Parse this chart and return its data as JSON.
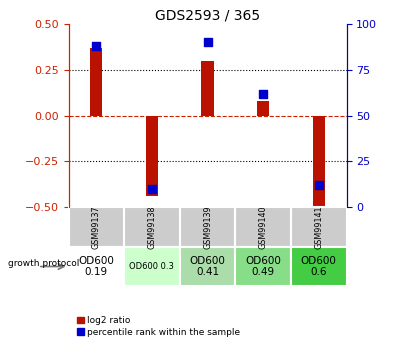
{
  "title": "GDS2593 / 365",
  "samples": [
    "GSM99137",
    "GSM99138",
    "GSM99139",
    "GSM99140",
    "GSM99141"
  ],
  "log2_ratio": [
    0.37,
    -0.44,
    0.3,
    0.08,
    -0.5
  ],
  "percentile_rank": [
    88,
    10,
    90,
    62,
    12
  ],
  "ylim_left": [
    -0.5,
    0.5
  ],
  "ylim_right": [
    0,
    100
  ],
  "yticks_left": [
    -0.5,
    -0.25,
    0.0,
    0.25,
    0.5
  ],
  "yticks_right": [
    0,
    25,
    50,
    75,
    100
  ],
  "bar_color_red": "#bb1100",
  "bar_color_blue": "#0000cc",
  "protocol_labels": [
    "OD600\n0.19",
    "OD600 0.3",
    "OD600\n0.41",
    "OD600\n0.49",
    "OD600\n0.6"
  ],
  "protocol_bg": [
    "#ffffff",
    "#ccffcc",
    "#aaddaa",
    "#88dd88",
    "#44cc44"
  ],
  "protocol_fontsize": [
    7.5,
    6.0,
    7.5,
    7.5,
    7.5
  ],
  "growth_protocol_label": "growth protocol",
  "legend_red_label": "log2 ratio",
  "legend_blue_label": "percentile rank within the sample",
  "left_tick_color": "#cc2200",
  "right_tick_color": "#0000cc",
  "bar_width": 0.22,
  "dot_size": 28
}
